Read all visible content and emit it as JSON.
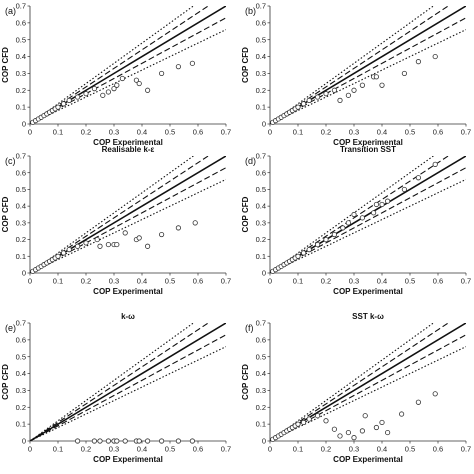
{
  "chart_data": [
    {
      "type": "scatter",
      "panel_label": "(a)",
      "title": "",
      "xlabel": "COP Experimental",
      "ylabel": "COP CFD",
      "xlim": [
        0,
        0.7
      ],
      "ylim": [
        0,
        0.7
      ],
      "xticks": [
        "0",
        "0.1",
        "0.2",
        "0.3",
        "0.4",
        "0.5",
        "0.6",
        "0.7"
      ],
      "yticks": [
        "0",
        "0.1",
        "0.2",
        "0.3",
        "0.4",
        "0.5",
        "0.6",
        "0.7"
      ],
      "reference_lines": [
        {
          "style": "solid",
          "slope": 1.0
        },
        {
          "style": "dashed",
          "slope": 1.1
        },
        {
          "style": "dashed",
          "slope": 0.9
        },
        {
          "style": "dotted",
          "slope": 1.2
        },
        {
          "style": "dotted",
          "slope": 0.8
        }
      ],
      "series": [
        {
          "marker": "open-circle",
          "x": [
            0.01,
            0.02,
            0.03,
            0.04,
            0.05,
            0.06,
            0.07,
            0.08,
            0.09,
            0.1,
            0.12,
            0.14,
            0.17,
            0.2,
            0.23,
            0.26,
            0.28,
            0.3,
            0.31,
            0.33,
            0.38,
            0.39,
            0.42,
            0.47,
            0.53,
            0.58
          ],
          "y": [
            0.01,
            0.02,
            0.03,
            0.04,
            0.05,
            0.06,
            0.07,
            0.08,
            0.09,
            0.1,
            0.12,
            0.14,
            0.16,
            0.18,
            0.21,
            0.17,
            0.19,
            0.21,
            0.23,
            0.27,
            0.26,
            0.24,
            0.2,
            0.3,
            0.34,
            0.36
          ]
        }
      ]
    },
    {
      "type": "scatter",
      "panel_label": "(b)",
      "title": "",
      "xlabel": "COP Experimental",
      "ylabel": "COP CFD",
      "xlim": [
        0,
        0.7
      ],
      "ylim": [
        0,
        0.7
      ],
      "xticks": [
        "0",
        "0.1",
        "0.2",
        "0.3",
        "0.4",
        "0.5",
        "0.6",
        "0.7"
      ],
      "yticks": [
        "0",
        "0.1",
        "0.2",
        "0.3",
        "0.4",
        "0.5",
        "0.6",
        "0.7"
      ],
      "reference_lines": [
        {
          "style": "solid",
          "slope": 1.0
        },
        {
          "style": "dashed",
          "slope": 1.1
        },
        {
          "style": "dashed",
          "slope": 0.9
        },
        {
          "style": "dotted",
          "slope": 1.2
        },
        {
          "style": "dotted",
          "slope": 0.8
        }
      ],
      "series": [
        {
          "marker": "open-circle",
          "x": [
            0.01,
            0.02,
            0.03,
            0.04,
            0.05,
            0.06,
            0.07,
            0.08,
            0.09,
            0.1,
            0.12,
            0.14,
            0.17,
            0.2,
            0.23,
            0.25,
            0.28,
            0.3,
            0.33,
            0.37,
            0.38,
            0.4,
            0.48,
            0.53,
            0.59
          ],
          "y": [
            0.01,
            0.02,
            0.03,
            0.04,
            0.05,
            0.06,
            0.07,
            0.08,
            0.09,
            0.1,
            0.12,
            0.14,
            0.16,
            0.18,
            0.2,
            0.14,
            0.17,
            0.2,
            0.23,
            0.28,
            0.28,
            0.23,
            0.3,
            0.37,
            0.4
          ]
        }
      ]
    },
    {
      "type": "scatter",
      "panel_label": "(c)",
      "title": "Realisable k-ε",
      "xlabel": "COP Experimental",
      "ylabel": "COP CFD",
      "xlim": [
        0,
        0.7
      ],
      "ylim": [
        0,
        0.7
      ],
      "xticks": [
        "0",
        "0.1",
        "0.2",
        "0.3",
        "0.4",
        "0.5",
        "0.6",
        "0.7"
      ],
      "yticks": [
        "0",
        "0.1",
        "0.2",
        "0.3",
        "0.4",
        "0.5",
        "0.6",
        "0.7"
      ],
      "reference_lines": [
        {
          "style": "solid",
          "slope": 1.0
        },
        {
          "style": "dashed",
          "slope": 1.1
        },
        {
          "style": "dashed",
          "slope": 0.9
        },
        {
          "style": "dotted",
          "slope": 1.2
        },
        {
          "style": "dotted",
          "slope": 0.8
        }
      ],
      "series": [
        {
          "marker": "open-circle",
          "x": [
            0.01,
            0.02,
            0.03,
            0.04,
            0.05,
            0.06,
            0.07,
            0.08,
            0.09,
            0.1,
            0.12,
            0.14,
            0.17,
            0.2,
            0.24,
            0.25,
            0.28,
            0.3,
            0.31,
            0.34,
            0.38,
            0.39,
            0.42,
            0.47,
            0.53,
            0.59
          ],
          "y": [
            0.01,
            0.02,
            0.03,
            0.04,
            0.05,
            0.06,
            0.07,
            0.08,
            0.09,
            0.1,
            0.12,
            0.14,
            0.16,
            0.18,
            0.2,
            0.16,
            0.17,
            0.17,
            0.17,
            0.24,
            0.2,
            0.21,
            0.16,
            0.23,
            0.27,
            0.3
          ]
        }
      ]
    },
    {
      "type": "scatter",
      "panel_label": "(d)",
      "title": "Transition SST",
      "xlabel": "COP Experimental",
      "ylabel": "COP CFD",
      "xlim": [
        0,
        0.7
      ],
      "ylim": [
        0,
        0.7
      ],
      "xticks": [
        "0",
        "0.1",
        "0.2",
        "0.3",
        "0.4",
        "0.5",
        "0.6",
        "0.7"
      ],
      "yticks": [
        "0",
        "0.1",
        "0.2",
        "0.3",
        "0.4",
        "0.5",
        "0.6",
        "0.7"
      ],
      "reference_lines": [
        {
          "style": "solid",
          "slope": 1.0
        },
        {
          "style": "dashed",
          "slope": 1.1
        },
        {
          "style": "dashed",
          "slope": 0.9
        },
        {
          "style": "dotted",
          "slope": 1.2
        },
        {
          "style": "dotted",
          "slope": 0.8
        }
      ],
      "series": [
        {
          "marker": "open-circle",
          "x": [
            0.01,
            0.02,
            0.03,
            0.04,
            0.05,
            0.06,
            0.07,
            0.08,
            0.09,
            0.1,
            0.12,
            0.14,
            0.17,
            0.2,
            0.23,
            0.26,
            0.28,
            0.3,
            0.33,
            0.37,
            0.38,
            0.4,
            0.42,
            0.48,
            0.53,
            0.59
          ],
          "y": [
            0.01,
            0.02,
            0.03,
            0.04,
            0.05,
            0.06,
            0.07,
            0.08,
            0.09,
            0.1,
            0.12,
            0.14,
            0.17,
            0.2,
            0.23,
            0.27,
            0.3,
            0.35,
            0.33,
            0.36,
            0.41,
            0.41,
            0.43,
            0.5,
            0.57,
            0.65
          ]
        }
      ]
    },
    {
      "type": "scatter",
      "panel_label": "(e)",
      "title": "k-ω",
      "xlabel": "COP Experimental",
      "ylabel": "COP CFD",
      "xlim": [
        0,
        0.7
      ],
      "ylim": [
        0,
        0.7
      ],
      "xticks": [
        "0",
        "0.1",
        "0.2",
        "0.3",
        "0.4",
        "0.5",
        "0.6",
        "0.7"
      ],
      "yticks": [
        "0",
        "0.1",
        "0.2",
        "0.3",
        "0.4",
        "0.5",
        "0.6",
        "0.7"
      ],
      "reference_lines": [
        {
          "style": "solid",
          "slope": 1.0
        },
        {
          "style": "dashed",
          "slope": 1.1
        },
        {
          "style": "dashed",
          "slope": 0.9
        },
        {
          "style": "dotted",
          "slope": 1.2
        },
        {
          "style": "dotted",
          "slope": 0.8
        }
      ],
      "series": [
        {
          "marker": "open-circle",
          "x": [
            0.17,
            0.23,
            0.25,
            0.28,
            0.3,
            0.31,
            0.34,
            0.38,
            0.39,
            0.42,
            0.47,
            0.53,
            0.58
          ],
          "y": [
            0,
            0,
            0,
            0,
            0,
            0,
            0,
            0,
            0,
            0,
            0,
            0,
            0
          ]
        }
      ]
    },
    {
      "type": "scatter",
      "panel_label": "(f)",
      "title": "SST k-ω",
      "xlabel": "COP Experimental",
      "ylabel": "COP CFD",
      "xlim": [
        0,
        0.7
      ],
      "ylim": [
        0,
        0.7
      ],
      "xticks": [
        "0",
        "0.1",
        "0.2",
        "0.3",
        "0.4",
        "0.5",
        "0.6",
        "0.7"
      ],
      "yticks": [
        "0",
        "0.1",
        "0.2",
        "0.3",
        "0.4",
        "0.5",
        "0.6",
        "0.7"
      ],
      "reference_lines": [
        {
          "style": "solid",
          "slope": 1.0
        },
        {
          "style": "dashed",
          "slope": 1.1
        },
        {
          "style": "dashed",
          "slope": 0.9
        },
        {
          "style": "dotted",
          "slope": 1.2
        },
        {
          "style": "dotted",
          "slope": 0.8
        }
      ],
      "series": [
        {
          "marker": "open-circle",
          "x": [
            0.01,
            0.02,
            0.03,
            0.04,
            0.05,
            0.06,
            0.07,
            0.08,
            0.09,
            0.1,
            0.12,
            0.14,
            0.17,
            0.2,
            0.23,
            0.25,
            0.28,
            0.3,
            0.33,
            0.34,
            0.38,
            0.4,
            0.42,
            0.47,
            0.53,
            0.59
          ],
          "y": [
            0.01,
            0.02,
            0.03,
            0.04,
            0.05,
            0.06,
            0.07,
            0.08,
            0.09,
            0.1,
            0.11,
            0.13,
            0.15,
            0.12,
            0.07,
            0.03,
            0.05,
            0.02,
            0.06,
            0.15,
            0.08,
            0.11,
            0.05,
            0.16,
            0.23,
            0.28
          ]
        }
      ]
    }
  ]
}
